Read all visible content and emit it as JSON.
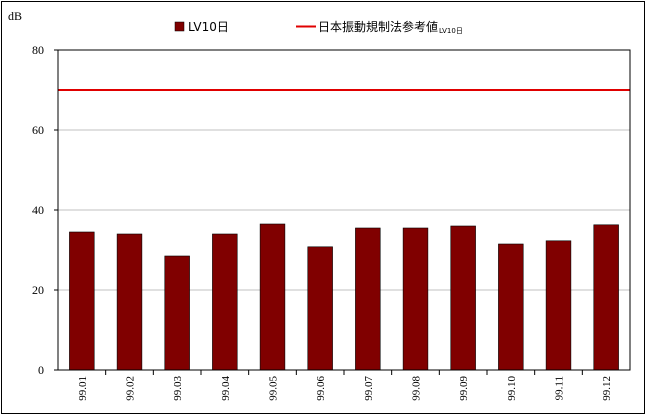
{
  "chart_data": {
    "type": "bar",
    "unit_label": "dB",
    "categories": [
      "99.01",
      "99.02",
      "99.03",
      "99.04",
      "99.05",
      "99.06",
      "99.07",
      "99.08",
      "99.09",
      "99.10",
      "99.11",
      "99.12"
    ],
    "series": [
      {
        "name": "LV10日",
        "values": [
          34.5,
          34,
          28.5,
          34,
          36.5,
          30.8,
          35.5,
          35.5,
          36,
          31.5,
          32.3,
          36.3
        ],
        "color": "#800000"
      }
    ],
    "reference_line": {
      "name": "日本振動規制法参考値",
      "name_suffix": "LV10日",
      "value": 70,
      "color": "#e00000"
    },
    "ylim": [
      0,
      80
    ],
    "yticks": [
      0,
      20,
      40,
      60,
      80
    ],
    "grid": true,
    "legend_position": "top-center"
  }
}
